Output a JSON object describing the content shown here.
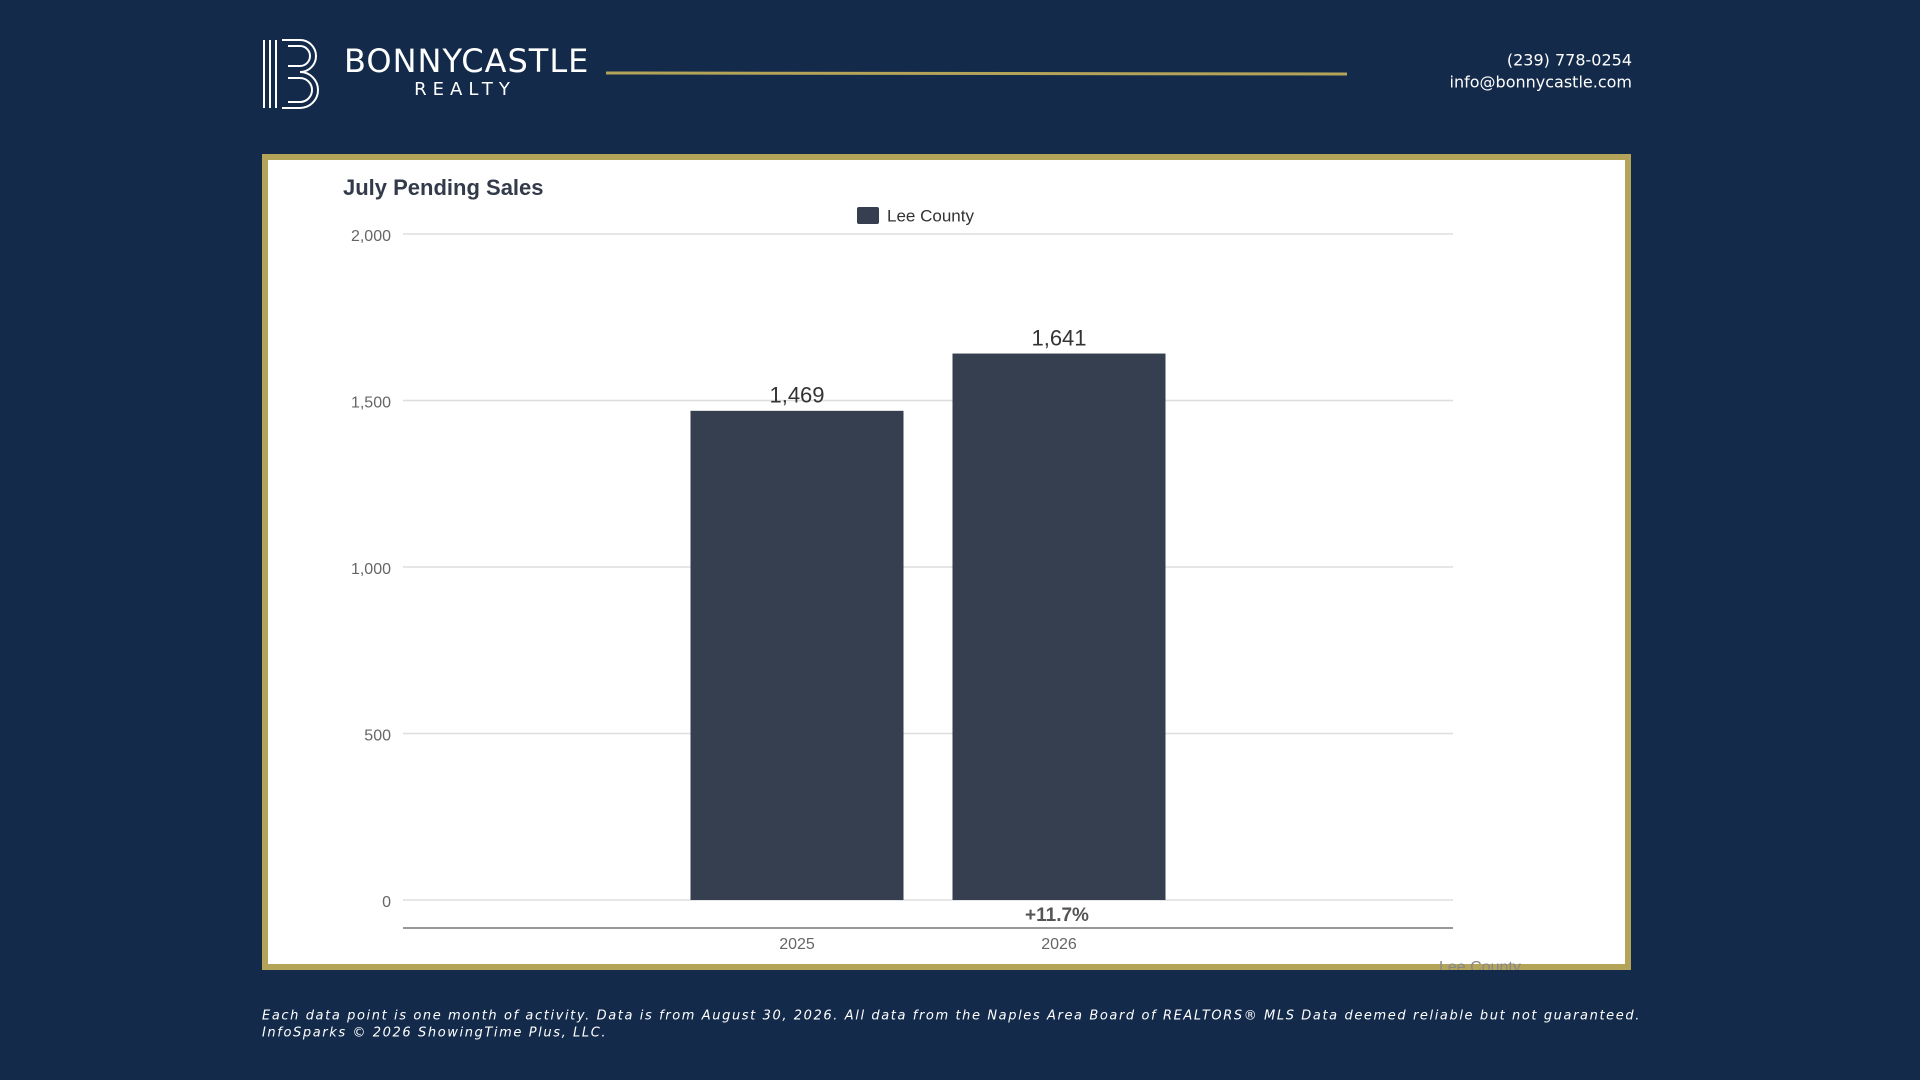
{
  "header": {
    "brand": "BONNYCASTLE",
    "subbrand": "REALTY",
    "phone": "(239) 778-0254",
    "email": "info@bonnycastle.com"
  },
  "chart_data": {
    "type": "bar",
    "title": "July Pending Sales",
    "categories": [
      "2025",
      "2026"
    ],
    "series": [
      {
        "name": "Lee County",
        "color": "#353f4f",
        "values": [
          1469,
          1641
        ],
        "value_labels": [
          "1,469",
          "1,641"
        ]
      }
    ],
    "ylim": [
      0,
      2000
    ],
    "yticks": [
      0,
      500,
      {
        "value": 1000,
        "label": "1,000"
      },
      {
        "value": 1500,
        "label": "1,500"
      },
      {
        "value": 2000,
        "label": "2,000"
      }
    ],
    "grid": true,
    "legend": "top",
    "change_label": "+11.7%",
    "source_label": "Lee County"
  },
  "footer": {
    "lines": [
      "Each data point is one month of activity. Data is from August 30, 2026. All data from the Naples Area Board of REALTORS® MLS  Data deemed reliable but not guaranteed.",
      "InfoSparks © 2026 ShowingTime Plus, LLC."
    ]
  }
}
